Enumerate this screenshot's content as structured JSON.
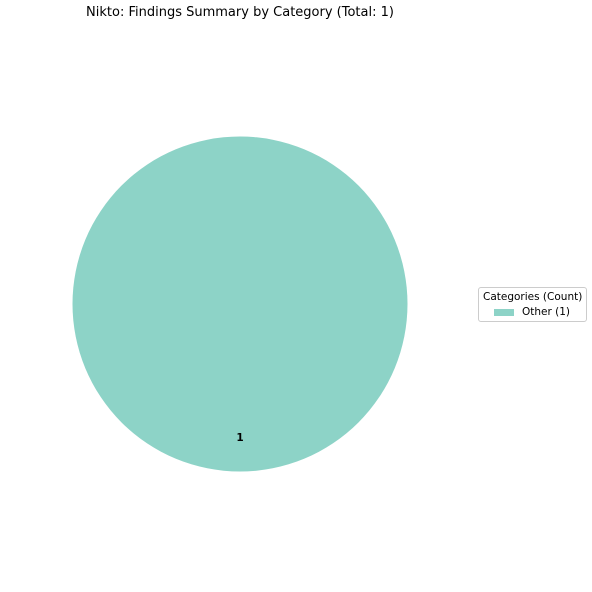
{
  "chart_data": {
    "type": "pie",
    "title": "Nikto: Findings Summary by Category (Total: 1)",
    "slices": [
      {
        "label": "Other",
        "value": 1,
        "color": "#8dd3c7",
        "data_label": "1",
        "legend_label": "Other (1)"
      }
    ],
    "legend": {
      "title": "Categories (Count)",
      "placement": "center-right"
    }
  }
}
